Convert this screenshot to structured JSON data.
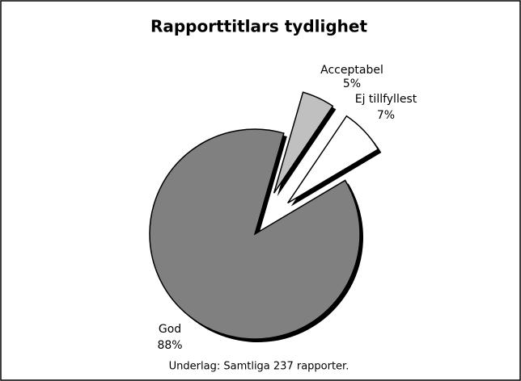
{
  "chart_data": {
    "type": "pie",
    "title": "Rapporttitlars tydlighet",
    "categories": [
      "Acceptabel",
      "Ej tillfyllest",
      "God"
    ],
    "values": [
      5,
      7,
      88
    ],
    "value_labels": [
      "5%",
      "7%",
      "88%"
    ],
    "colors": [
      "#c0c0c0",
      "#ffffff",
      "#808080"
    ],
    "note": "Underlag: Samtliga 237 rapporter."
  }
}
